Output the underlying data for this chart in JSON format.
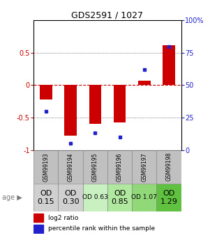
{
  "title": "GDS2591 / 1027",
  "samples": [
    "GSM99193",
    "GSM99194",
    "GSM99195",
    "GSM99196",
    "GSM99197",
    "GSM99198"
  ],
  "log2_ratios": [
    -0.22,
    -0.78,
    -0.6,
    -0.57,
    0.07,
    0.62
  ],
  "percentile_ranks": [
    30,
    5,
    13,
    10,
    62,
    80
  ],
  "bar_color": "#cc0000",
  "dot_color": "#2222cc",
  "ylim_left": [
    -1,
    1
  ],
  "ylim_right": [
    0,
    100
  ],
  "yticks_left": [
    -1,
    -0.5,
    0,
    0.5
  ],
  "ytick_labels_left": [
    "-1",
    "-0.5",
    "0",
    "0.5"
  ],
  "yticks_right": [
    0,
    25,
    50,
    75,
    100
  ],
  "ytick_labels_right": [
    "0",
    "25",
    "50",
    "75",
    "100%"
  ],
  "zero_line_color": "#cc0000",
  "dotted_color": "#555555",
  "sample_labels": [
    "OD\n0.15",
    "OD\n0.30",
    "OD 0.63",
    "OD\n0.85",
    "OD 1.07",
    "OD\n1.29"
  ],
  "sample_label_fontsize": [
    8,
    8,
    6.5,
    8,
    6.5,
    8
  ],
  "cell_colors": [
    "#d0d0d0",
    "#d0d0d0",
    "#c8f0c0",
    "#b0e8a0",
    "#90d878",
    "#60c040"
  ],
  "legend_red": "log2 ratio",
  "legend_blue": "percentile rank within the sample",
  "bar_width": 0.5,
  "background_color": "#ffffff",
  "header_bg": "#c0c0c0"
}
